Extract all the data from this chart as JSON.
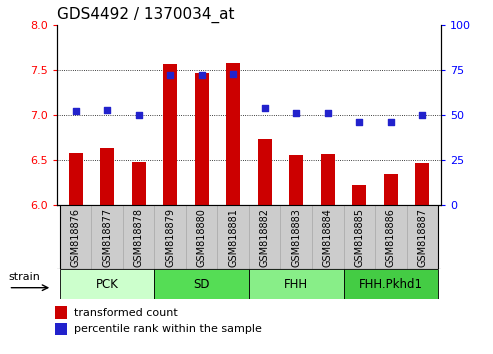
{
  "title": "GDS4492 / 1370034_at",
  "samples": [
    "GSM818876",
    "GSM818877",
    "GSM818878",
    "GSM818879",
    "GSM818880",
    "GSM818881",
    "GSM818882",
    "GSM818883",
    "GSM818884",
    "GSM818885",
    "GSM818886",
    "GSM818887"
  ],
  "transformed_count": [
    6.58,
    6.63,
    6.48,
    7.56,
    7.47,
    7.58,
    6.73,
    6.56,
    6.57,
    6.23,
    6.35,
    6.47
  ],
  "percentile_rank": [
    52,
    53,
    50,
    72,
    72,
    73,
    54,
    51,
    51,
    46,
    46,
    50
  ],
  "ylim_left": [
    6.0,
    8.0
  ],
  "ylim_right": [
    0,
    100
  ],
  "yticks_left": [
    6.0,
    6.5,
    7.0,
    7.5,
    8.0
  ],
  "yticks_right": [
    0,
    25,
    50,
    75,
    100
  ],
  "bar_color": "#cc0000",
  "dot_color": "#2222cc",
  "bar_bottom": 6.0,
  "groups": [
    {
      "label": "PCK",
      "start": 0,
      "end": 3,
      "color": "#ccffcc"
    },
    {
      "label": "SD",
      "start": 3,
      "end": 6,
      "color": "#55dd55"
    },
    {
      "label": "FHH",
      "start": 6,
      "end": 9,
      "color": "#88ee88"
    },
    {
      "label": "FHH.Pkhd1",
      "start": 9,
      "end": 12,
      "color": "#44cc44"
    }
  ],
  "xtick_bg_color": "#cccccc",
  "xtick_edge_color": "#aaaaaa",
  "grid_dotted_at": [
    6.5,
    7.0,
    7.5
  ],
  "title_fontsize": 11,
  "label_fontsize": 7,
  "group_fontsize": 8.5,
  "legend_fontsize": 8,
  "strain_label": "strain"
}
